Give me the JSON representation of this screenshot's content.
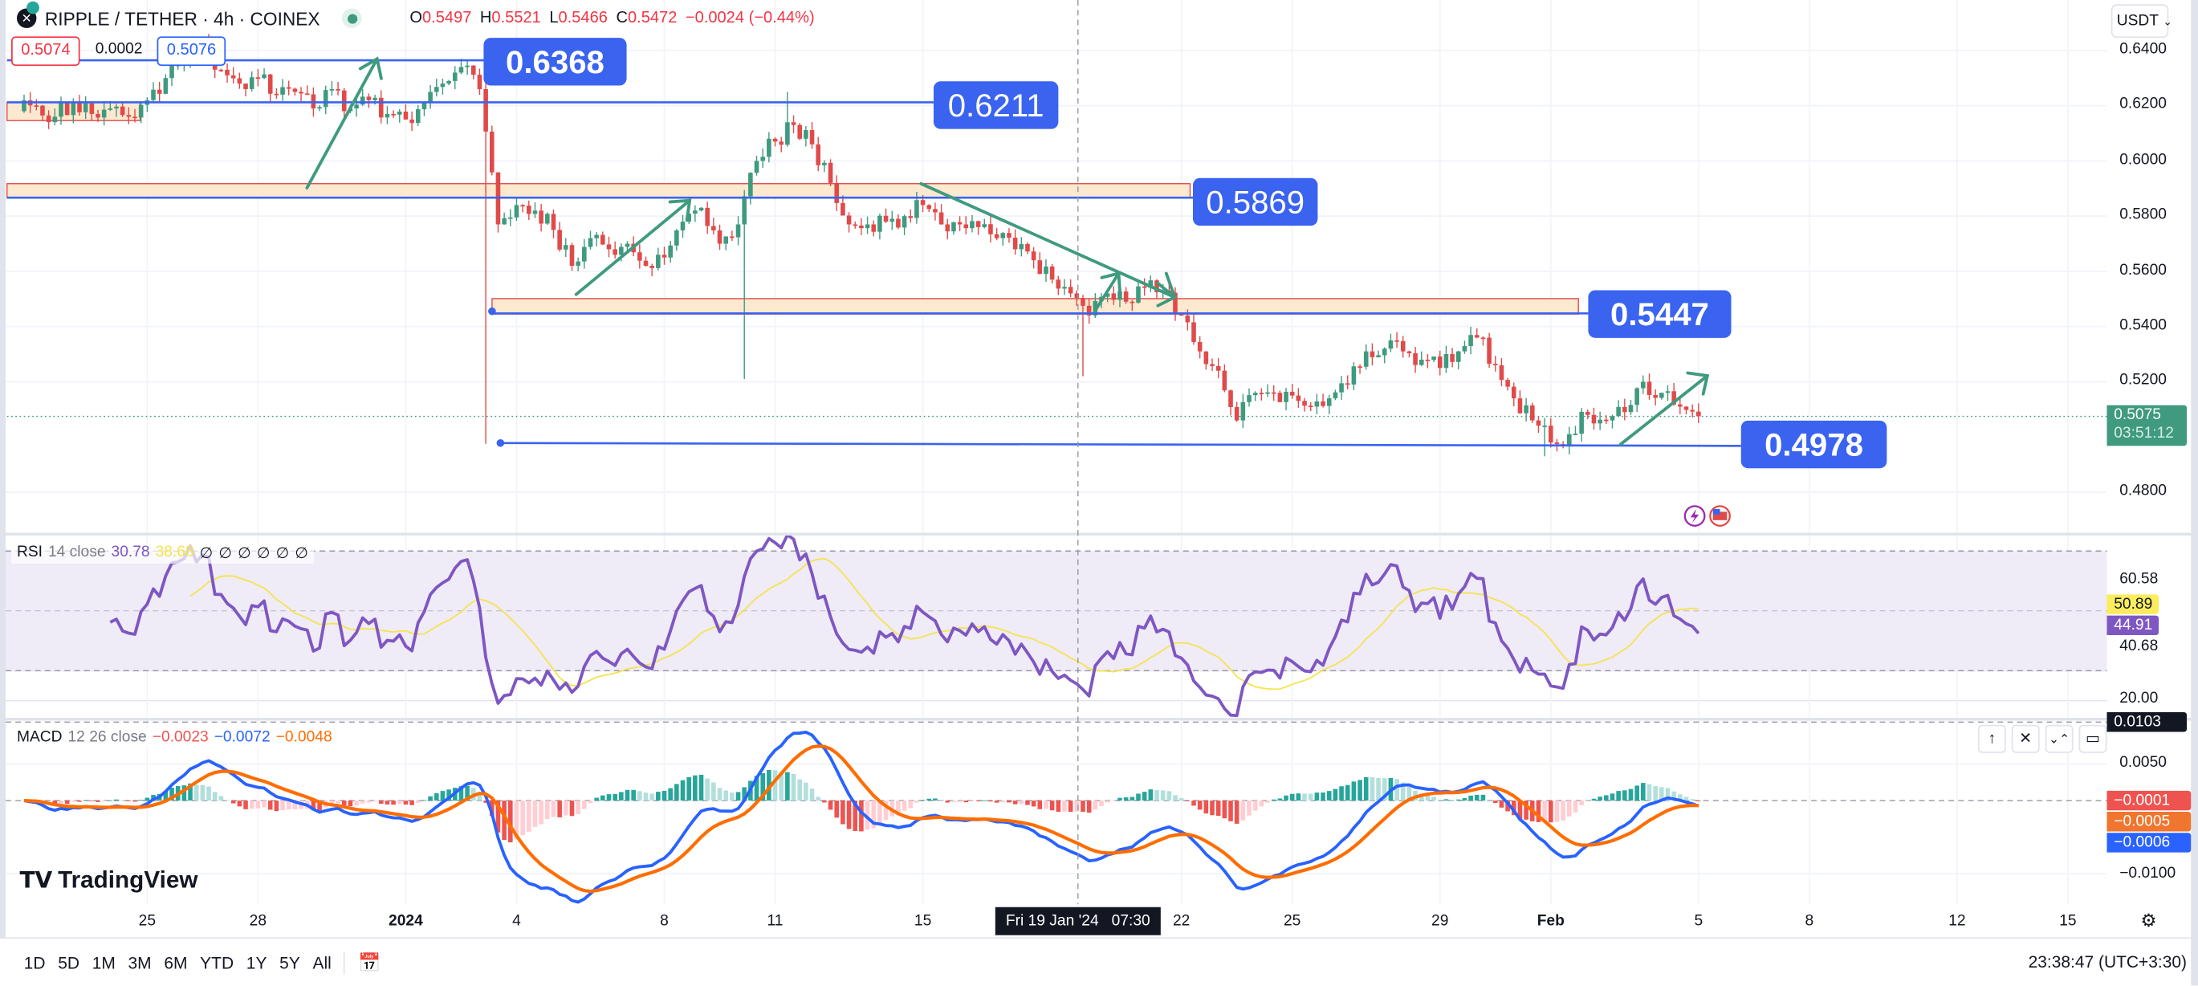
{
  "header": {
    "title": "RIPPLE / TETHER · 4h · COINEX",
    "logo_text": "✕",
    "ohlc": [
      {
        "k": "O",
        "v": "0.5497"
      },
      {
        "k": "H",
        "v": "0.5521"
      },
      {
        "k": "L",
        "v": "0.5466"
      },
      {
        "k": "C",
        "v": "0.5472"
      }
    ],
    "change": "−0.0024 (−0.44%)"
  },
  "trade": {
    "sell": "0.5074",
    "spread": "0.0002",
    "buy": "0.5076"
  },
  "currency_select": "USDT",
  "price_axis": [
    "0.6400",
    "0.6200",
    "0.6000",
    "0.5800",
    "0.5600",
    "0.5400",
    "0.5200",
    "0.4800"
  ],
  "last_price": {
    "price": "0.5075",
    "countdown": "03:51:12",
    "color": "#3f9a7f"
  },
  "drawings": {
    "levels": [
      "0.6368",
      "0.6211",
      "0.5869",
      "0.5447",
      "0.4978"
    ],
    "color": "#3a63f0",
    "zone_color": "#fde9cf",
    "arrow_color": "#3f9a7f"
  },
  "rsi": {
    "legend_name": "RSI",
    "legend_params": "14 close",
    "value": "30.78",
    "ma_value": "38.68",
    "placeholders": [
      "∅",
      "∅",
      "∅",
      "∅",
      "∅",
      "∅"
    ],
    "axis": [
      "60.58",
      "40.68",
      "20.00"
    ],
    "tag_ma": "50.89",
    "tag_rsi": "44.91",
    "colors": {
      "rsi": "#7e57c2",
      "ma": "#f5e34b",
      "band": "#efebf7"
    }
  },
  "macd": {
    "legend_name": "MACD",
    "legend_params": "12 26 close",
    "hist": "−0.0023",
    "macd": "−0.0072",
    "signal": "−0.0048",
    "axis": [
      "0.0050",
      "−0.0100"
    ],
    "crosshair_value": "0.0103",
    "tags": [
      "−0.0001",
      "−0.0005",
      "−0.0006"
    ],
    "colors": {
      "macd": "#2962ff",
      "signal": "#ff6d00",
      "up": "#26a69a",
      "up_light": "#b2dfdb",
      "down": "#ef5350",
      "down_light": "#ffcdd2"
    },
    "pane_buttons": [
      "↑",
      "✕",
      "⌄⌃",
      "▭"
    ]
  },
  "time_axis": [
    {
      "label": "25",
      "date": "2023-12-25"
    },
    {
      "label": "28",
      "date": "2023-12-28"
    },
    {
      "label": "2024",
      "date": "2024-01-01"
    },
    {
      "label": "4",
      "date": "2024-01-04"
    },
    {
      "label": "8",
      "date": "2024-01-08"
    },
    {
      "label": "11",
      "date": "2024-01-11"
    },
    {
      "label": "15",
      "date": "2024-01-15"
    },
    {
      "label": "22",
      "date": "2024-01-22"
    },
    {
      "label": "25",
      "date": "2024-01-25"
    },
    {
      "label": "29",
      "date": "2024-01-29"
    },
    {
      "label": "Feb",
      "date": "2024-02-01"
    },
    {
      "label": "5",
      "date": "2024-02-05"
    },
    {
      "label": "8",
      "date": "2024-02-08"
    },
    {
      "label": "12",
      "date": "2024-02-12"
    },
    {
      "label": "15",
      "date": "2024-02-15"
    }
  ],
  "crosshair_time": "Fri 19 Jan '24   07:30",
  "brand": "TradingView",
  "bottom_bar": {
    "ranges": [
      "1D",
      "5D",
      "1M",
      "3M",
      "6M",
      "YTD",
      "1Y",
      "5Y",
      "All"
    ],
    "clock": "23:38:47 (UTC+3:30)"
  },
  "chart_data": {
    "type": "candlestick",
    "symbol": "RIPPLE / TETHER",
    "interval": "4h",
    "start": "2023-12-21 12:00",
    "step_hours": 12,
    "closes_12h": [
      0.618,
      0.62,
      0.616,
      0.621,
      0.617,
      0.619,
      0.616,
      0.622,
      0.63,
      0.636,
      0.641,
      0.633,
      0.628,
      0.63,
      0.624,
      0.625,
      0.619,
      0.626,
      0.619,
      0.622,
      0.617,
      0.615,
      0.621,
      0.628,
      0.634,
      0.626,
      0.577,
      0.584,
      0.582,
      0.575,
      0.562,
      0.572,
      0.568,
      0.57,
      0.562,
      0.565,
      0.578,
      0.583,
      0.57,
      0.577,
      0.6,
      0.607,
      0.613,
      0.606,
      0.592,
      0.577,
      0.577,
      0.578,
      0.58,
      0.584,
      0.577,
      0.577,
      0.576,
      0.572,
      0.568,
      0.564,
      0.557,
      0.552,
      0.544,
      0.552,
      0.549,
      0.554,
      0.553,
      0.544,
      0.531,
      0.524,
      0.506,
      0.516,
      0.516,
      0.515,
      0.511,
      0.514,
      0.519,
      0.531,
      0.532,
      0.531,
      0.528,
      0.525,
      0.531,
      0.536,
      0.526,
      0.514,
      0.506,
      0.498,
      0.501,
      0.508,
      0.506,
      0.509,
      0.52,
      0.516,
      0.511,
      0.5075
    ],
    "wicks": [
      {
        "i": 11,
        "k": 0,
        "high": 0.646
      },
      {
        "i": 26,
        "k": 0,
        "low": 0.4975
      },
      {
        "i": 40,
        "k": 0,
        "low": 0.521
      },
      {
        "i": 42,
        "k": 1,
        "high": 0.625
      },
      {
        "i": 58,
        "k": 1,
        "low": 0.522
      },
      {
        "i": 83,
        "k": 1,
        "low": 0.493
      }
    ],
    "ylim": [
      0.47,
      0.648
    ]
  }
}
